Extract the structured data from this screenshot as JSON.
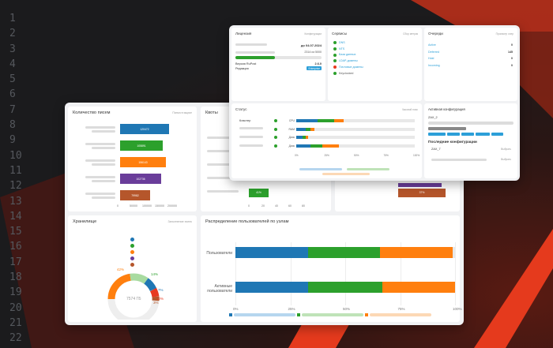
{
  "line_numbers": [
    "1",
    "2",
    "3",
    "4",
    "5",
    "6",
    "7",
    "8",
    "9",
    "10",
    "11",
    "12",
    "13",
    "14",
    "15",
    "16",
    "17",
    "18",
    "19",
    "20",
    "21",
    "22"
  ],
  "colors": {
    "blue": "#1f77b4",
    "green": "#2ca02c",
    "orange": "#ff7f0e",
    "purple": "#6a3d9a",
    "brown": "#b5562b",
    "red_accent": "#e8391f",
    "sky": "#2c9fd8"
  },
  "left_card": {
    "mail_count": {
      "title": "Количество писем",
      "link": "Папка в ящике",
      "bars": [
        "120472",
        "105891",
        "156143",
        "102736",
        "79982"
      ],
      "ticks": [
        "0",
        "50000",
        "100000",
        "150000",
        "200000"
      ]
    },
    "quotas": {
      "title": "Квоты",
      "bar_label": "41%",
      "ticks": [
        "0",
        "20",
        "40",
        "60",
        "80"
      ],
      "right_bar_label": "37%"
    },
    "storage": {
      "title": "Хранилище",
      "link": "Заполнение ячеек",
      "center_value": "7574 ГБ",
      "pct_orange": "42%",
      "pct_green": "14%",
      "pct_blue": "7%",
      "pct_red": "10%",
      "pct_brown": "3%"
    },
    "distribution": {
      "title": "Распределение пользователей по узлам",
      "row1": "Пользователи",
      "row2a": "Активные",
      "row2b": "пользователи",
      "ticks": [
        "0%",
        "25%",
        "50%",
        "75%",
        "100%"
      ]
    }
  },
  "right_card": {
    "license": {
      "title": "Лицензия",
      "link": "Конфигурации",
      "until": "до 04.07.2024",
      "count": "2314 из 5000",
      "version_label": "Версия RuPost",
      "version_value": "2.6.0",
      "edition_label": "Редакция",
      "edition_value": "Enterprise"
    },
    "services": {
      "title": "Сервисы",
      "link": "Сбор метрик",
      "items": [
        "DNS",
        "NTS",
        "База данных",
        "LDAP-домены",
        "Почтовые домены",
        "Keyclocked"
      ]
    },
    "queues": {
      "title": "Очереди",
      "link": "Просмотр очер",
      "rows": [
        [
          "Active",
          "0"
        ],
        [
          "Deferred",
          "145"
        ],
        [
          "Hold",
          "0"
        ],
        [
          "Incoming",
          "0"
        ]
      ]
    },
    "status": {
      "title": "Статус",
      "link": "Часовой пояс",
      "cluster": "Кластер",
      "rows": [
        "CPU",
        "RAM",
        "Диск",
        "Диск"
      ],
      "ticks": [
        "0%",
        "25%",
        "50%",
        "75%",
        "100%"
      ]
    },
    "active_config": {
      "title": "Активная конфигурация",
      "name": "ZAX_2",
      "recent_title": "Последние конфигурации",
      "recent_item": "ZAX_7",
      "select_label": "Выбрать"
    }
  }
}
